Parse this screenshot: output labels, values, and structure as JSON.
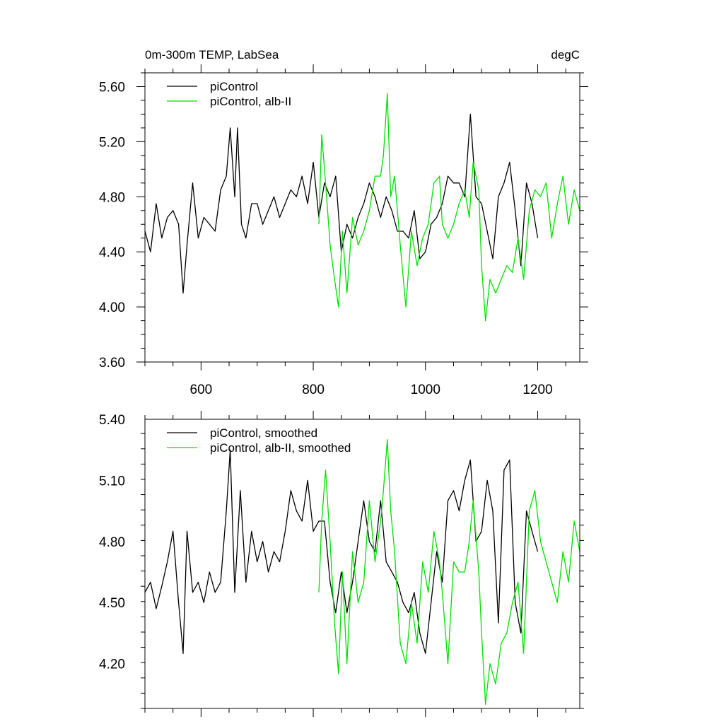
{
  "chart_data": [
    {
      "type": "line",
      "title": "0m-300m TEMP, LabSea",
      "units": "degC",
      "xlim": [
        500,
        1275
      ],
      "ylim": [
        3.6,
        5.7
      ],
      "x_ticks": [
        600,
        800,
        1000,
        1200
      ],
      "x_tick_labels": [
        "600",
        "800",
        "1000",
        "1200"
      ],
      "y_ticks": [
        3.6,
        4.0,
        4.4,
        4.8,
        5.2,
        5.6
      ],
      "y_tick_labels": [
        "3.60",
        "4.00",
        "4.40",
        "4.80",
        "5.20",
        "5.60"
      ],
      "legend_position": "top-left",
      "series": [
        {
          "name": "piControl",
          "color": "#000000",
          "x": [
            500,
            510,
            520,
            530,
            540,
            550,
            560,
            568,
            575,
            585,
            595,
            605,
            615,
            625,
            635,
            645,
            652,
            660,
            665,
            672,
            680,
            690,
            700,
            710,
            720,
            730,
            740,
            750,
            760,
            770,
            780,
            790,
            800,
            810,
            820,
            830,
            840,
            850,
            860,
            870,
            880,
            890,
            900,
            910,
            920,
            930,
            940,
            950,
            960,
            970,
            980,
            990,
            1000,
            1010,
            1020,
            1030,
            1040,
            1050,
            1060,
            1070,
            1080,
            1090,
            1100,
            1110,
            1120,
            1130,
            1140,
            1150,
            1160,
            1170,
            1180,
            1190,
            1200
          ],
          "y": [
            4.55,
            4.4,
            4.75,
            4.5,
            4.65,
            4.7,
            4.6,
            4.1,
            4.45,
            4.9,
            4.5,
            4.65,
            4.6,
            4.55,
            4.85,
            4.95,
            5.3,
            4.8,
            5.3,
            4.6,
            4.5,
            4.75,
            4.75,
            4.6,
            4.7,
            4.8,
            4.65,
            4.75,
            4.85,
            4.8,
            4.95,
            4.75,
            5.05,
            4.65,
            4.9,
            4.8,
            4.95,
            4.4,
            4.6,
            4.5,
            4.65,
            4.75,
            4.9,
            4.8,
            4.65,
            4.8,
            4.7,
            4.55,
            4.55,
            4.5,
            4.7,
            4.35,
            4.4,
            4.6,
            4.65,
            4.75,
            4.95,
            4.9,
            4.9,
            4.8,
            5.4,
            4.8,
            4.75,
            4.55,
            4.35,
            4.8,
            4.9,
            5.05,
            4.7,
            4.3,
            4.9,
            4.75,
            4.5
          ]
        },
        {
          "name": "piControl, alb-II",
          "color": "#00e000",
          "x": [
            810,
            815,
            822,
            830,
            838,
            845,
            852,
            860,
            870,
            880,
            890,
            900,
            910,
            920,
            925,
            932,
            938,
            945,
            955,
            965,
            975,
            985,
            995,
            1005,
            1015,
            1025,
            1030,
            1040,
            1050,
            1060,
            1070,
            1078,
            1085,
            1095,
            1100,
            1107,
            1115,
            1125,
            1135,
            1145,
            1155,
            1165,
            1175,
            1185,
            1195,
            1205,
            1215,
            1225,
            1235,
            1245,
            1255,
            1265,
            1275
          ],
          "y": [
            4.6,
            5.25,
            4.9,
            4.45,
            4.2,
            4.0,
            4.55,
            4.1,
            4.65,
            4.45,
            4.55,
            4.7,
            4.95,
            4.95,
            5.1,
            5.55,
            4.8,
            4.95,
            4.45,
            4.0,
            4.55,
            4.3,
            4.5,
            4.6,
            4.9,
            4.95,
            4.6,
            4.5,
            4.6,
            4.75,
            4.85,
            4.65,
            5.05,
            4.85,
            4.3,
            3.9,
            4.2,
            4.1,
            4.2,
            4.3,
            4.25,
            4.5,
            4.2,
            4.7,
            4.85,
            4.8,
            4.9,
            4.5,
            4.75,
            4.95,
            4.6,
            4.85,
            4.7
          ]
        }
      ]
    },
    {
      "type": "line",
      "xlim": [
        500,
        1275
      ],
      "ylim": [
        3.98,
        5.4
      ],
      "x_ticks": [
        600,
        800,
        1000,
        1200
      ],
      "y_ticks": [
        4.2,
        4.5,
        4.8,
        5.1,
        5.4
      ],
      "y_tick_labels": [
        "4.20",
        "4.50",
        "4.80",
        "5.10",
        "5.40"
      ],
      "legend_position": "top-left",
      "series": [
        {
          "name": "piControl, smoothed",
          "color": "#000000",
          "x": [
            500,
            510,
            520,
            530,
            540,
            550,
            560,
            568,
            575,
            585,
            595,
            605,
            615,
            625,
            635,
            645,
            652,
            660,
            670,
            680,
            690,
            700,
            710,
            720,
            730,
            740,
            750,
            760,
            770,
            780,
            790,
            800,
            810,
            820,
            830,
            840,
            850,
            860,
            870,
            880,
            890,
            900,
            910,
            920,
            930,
            940,
            950,
            960,
            970,
            980,
            990,
            1000,
            1010,
            1020,
            1030,
            1040,
            1050,
            1060,
            1070,
            1080,
            1090,
            1100,
            1110,
            1120,
            1130,
            1140,
            1150,
            1160,
            1170,
            1180,
            1190,
            1200
          ],
          "y": [
            4.55,
            4.6,
            4.47,
            4.58,
            4.7,
            4.85,
            4.5,
            4.25,
            4.85,
            4.55,
            4.6,
            4.5,
            4.65,
            4.55,
            4.6,
            4.95,
            5.25,
            4.55,
            5.05,
            4.6,
            4.85,
            4.7,
            4.8,
            4.65,
            4.75,
            4.7,
            4.85,
            5.05,
            4.95,
            4.9,
            5.1,
            4.85,
            4.9,
            4.9,
            4.6,
            4.45,
            4.65,
            4.45,
            4.6,
            4.8,
            5.0,
            4.8,
            4.75,
            5.0,
            4.7,
            4.65,
            4.6,
            4.5,
            4.45,
            4.55,
            4.35,
            4.25,
            4.5,
            4.75,
            4.6,
            5.0,
            5.05,
            4.95,
            5.1,
            5.2,
            4.8,
            4.85,
            5.1,
            4.95,
            4.4,
            5.15,
            5.2,
            4.5,
            4.35,
            4.95,
            4.85,
            4.75
          ]
        },
        {
          "name": "piControl, alb-II, smoothed",
          "color": "#00e000",
          "x": [
            810,
            815,
            822,
            830,
            838,
            845,
            852,
            860,
            870,
            880,
            890,
            900,
            910,
            920,
            925,
            932,
            938,
            945,
            955,
            965,
            975,
            985,
            995,
            1005,
            1015,
            1025,
            1030,
            1040,
            1050,
            1060,
            1070,
            1078,
            1085,
            1095,
            1100,
            1107,
            1115,
            1125,
            1135,
            1145,
            1155,
            1165,
            1175,
            1185,
            1195,
            1205,
            1215,
            1225,
            1235,
            1245,
            1255,
            1265,
            1275
          ],
          "y": [
            4.55,
            4.9,
            5.15,
            4.8,
            4.4,
            4.15,
            4.65,
            4.2,
            4.75,
            4.5,
            4.6,
            5.0,
            4.7,
            4.9,
            5.05,
            5.3,
            4.95,
            4.75,
            4.3,
            4.2,
            4.5,
            4.3,
            4.7,
            4.55,
            4.85,
            4.7,
            4.55,
            4.2,
            4.7,
            4.65,
            4.65,
            4.8,
            5.0,
            4.65,
            4.35,
            4.0,
            4.2,
            4.1,
            4.3,
            4.35,
            4.5,
            4.6,
            4.25,
            4.95,
            5.05,
            4.8,
            4.7,
            4.6,
            4.5,
            4.75,
            4.6,
            4.9,
            4.75
          ]
        }
      ]
    }
  ]
}
